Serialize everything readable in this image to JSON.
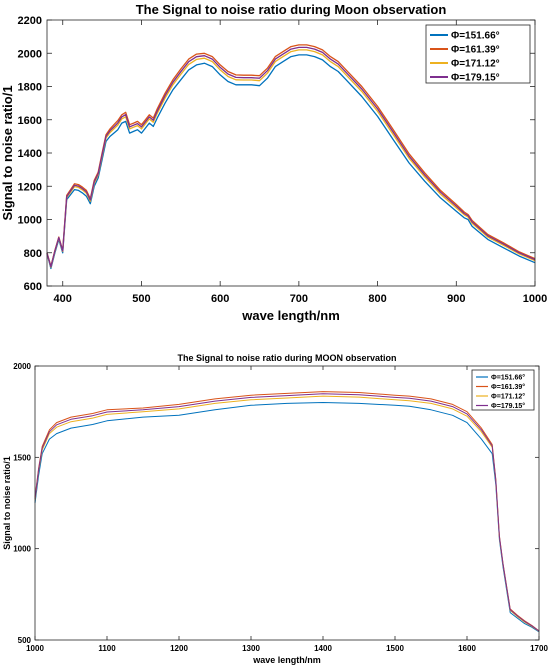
{
  "chart_data": [
    {
      "type": "line",
      "title": "The Signal to noise ratio during Moon observation",
      "xlabel": "wave length/nm",
      "ylabel": "Signal to noise ratio/1",
      "xlim": [
        380,
        1000
      ],
      "ylim": [
        600,
        2200
      ],
      "xticks": [
        400,
        500,
        600,
        700,
        800,
        900,
        1000
      ],
      "yticks": [
        600,
        800,
        1000,
        1200,
        1400,
        1600,
        1800,
        2000,
        2200
      ],
      "grid": false,
      "legend_position": "top-right",
      "x": [
        380,
        385,
        390,
        395,
        400,
        405,
        410,
        415,
        420,
        425,
        430,
        435,
        440,
        445,
        450,
        455,
        460,
        465,
        470,
        475,
        480,
        485,
        490,
        495,
        500,
        505,
        510,
        515,
        520,
        530,
        540,
        550,
        560,
        570,
        580,
        590,
        600,
        610,
        620,
        630,
        640,
        650,
        660,
        670,
        680,
        690,
        700,
        710,
        720,
        730,
        740,
        750,
        760,
        780,
        800,
        820,
        840,
        860,
        880,
        900,
        910,
        915,
        920,
        940,
        960,
        980,
        1000
      ],
      "series": [
        {
          "name": "Φ=151.66°",
          "color": "#0072bd",
          "values": [
            795,
            705,
            800,
            880,
            800,
            1120,
            1150,
            1180,
            1175,
            1160,
            1140,
            1095,
            1200,
            1250,
            1360,
            1470,
            1500,
            1520,
            1540,
            1580,
            1590,
            1520,
            1530,
            1540,
            1520,
            1550,
            1580,
            1560,
            1610,
            1700,
            1780,
            1840,
            1900,
            1930,
            1940,
            1920,
            1870,
            1830,
            1810,
            1810,
            1810,
            1805,
            1850,
            1920,
            1950,
            1980,
            1990,
            1990,
            1980,
            1960,
            1920,
            1890,
            1840,
            1740,
            1620,
            1480,
            1340,
            1230,
            1130,
            1050,
            1010,
            1000,
            960,
            880,
            830,
            780,
            740
          ]
        },
        {
          "name": "Φ=161.39°",
          "color": "#d95319",
          "values": [
            800,
            720,
            815,
            895,
            815,
            1145,
            1180,
            1215,
            1210,
            1195,
            1175,
            1125,
            1235,
            1285,
            1400,
            1510,
            1545,
            1570,
            1595,
            1630,
            1645,
            1570,
            1580,
            1590,
            1570,
            1600,
            1630,
            1610,
            1665,
            1760,
            1840,
            1905,
            1965,
            1995,
            2000,
            1980,
            1930,
            1890,
            1870,
            1868,
            1868,
            1865,
            1910,
            1980,
            2010,
            2040,
            2050,
            2050,
            2040,
            2020,
            1980,
            1950,
            1900,
            1800,
            1680,
            1540,
            1395,
            1280,
            1175,
            1090,
            1045,
            1030,
            995,
            910,
            860,
            805,
            765
          ]
        },
        {
          "name": "Φ=171.12°",
          "color": "#edb120",
          "values": [
            797,
            713,
            808,
            888,
            808,
            1132,
            1165,
            1198,
            1193,
            1178,
            1158,
            1110,
            1218,
            1268,
            1380,
            1490,
            1523,
            1545,
            1568,
            1605,
            1618,
            1545,
            1555,
            1565,
            1545,
            1575,
            1605,
            1585,
            1638,
            1730,
            1810,
            1873,
            1933,
            1963,
            1970,
            1950,
            1900,
            1860,
            1840,
            1839,
            1839,
            1835,
            1880,
            1950,
            1980,
            2010,
            2020,
            2020,
            2010,
            1990,
            1950,
            1920,
            1870,
            1770,
            1650,
            1510,
            1368,
            1255,
            1153,
            1070,
            1028,
            1015,
            978,
            895,
            845,
            793,
            753
          ]
        },
        {
          "name": "Φ=179.15°",
          "color": "#7e2f8e",
          "values": [
            798,
            716,
            811,
            891,
            811,
            1138,
            1172,
            1206,
            1201,
            1186,
            1166,
            1117,
            1226,
            1276,
            1390,
            1500,
            1534,
            1557,
            1581,
            1617,
            1631,
            1557,
            1567,
            1577,
            1557,
            1587,
            1617,
            1597,
            1651,
            1745,
            1825,
            1889,
            1949,
            1979,
            1985,
            1965,
            1915,
            1875,
            1855,
            1853,
            1853,
            1850,
            1895,
            1965,
            1995,
            2025,
            2035,
            2035,
            2025,
            2005,
            1965,
            1935,
            1885,
            1785,
            1665,
            1525,
            1381,
            1267,
            1164,
            1080,
            1036,
            1022,
            986,
            902,
            852,
            799,
            759
          ]
        }
      ]
    },
    {
      "type": "line",
      "title": "The Signal to noise ratio during MOON observation",
      "xlabel": "wave length/nm",
      "ylabel": "Signal to noise ratio/1",
      "xlim": [
        1000,
        1700
      ],
      "ylim": [
        500,
        2000
      ],
      "xticks": [
        1000,
        1100,
        1200,
        1300,
        1400,
        1500,
        1600,
        1700
      ],
      "yticks": [
        500,
        1000,
        1500,
        2000
      ],
      "grid": false,
      "legend_position": "top-right",
      "x": [
        1000,
        1005,
        1010,
        1020,
        1030,
        1050,
        1080,
        1100,
        1150,
        1200,
        1250,
        1300,
        1350,
        1400,
        1450,
        1500,
        1520,
        1550,
        1580,
        1600,
        1620,
        1635,
        1640,
        1645,
        1650,
        1660,
        1670,
        1680,
        1690,
        1700
      ],
      "series": [
        {
          "name": "Φ=151.66°",
          "color": "#0072bd",
          "values": [
            1250,
            1400,
            1520,
            1600,
            1630,
            1660,
            1680,
            1700,
            1720,
            1730,
            1760,
            1785,
            1795,
            1800,
            1795,
            1785,
            1780,
            1760,
            1730,
            1690,
            1600,
            1520,
            1350,
            1050,
            900,
            650,
            620,
            590,
            570,
            545
          ]
        },
        {
          "name": "Φ=161.39°",
          "color": "#d95319",
          "values": [
            1280,
            1440,
            1560,
            1650,
            1690,
            1720,
            1740,
            1760,
            1770,
            1790,
            1820,
            1840,
            1850,
            1860,
            1855,
            1840,
            1835,
            1820,
            1790,
            1750,
            1660,
            1570,
            1380,
            1070,
            920,
            670,
            635,
            605,
            580,
            550
          ]
        },
        {
          "name": "Φ=171.12°",
          "color": "#edb120",
          "values": [
            1265,
            1425,
            1540,
            1630,
            1665,
            1695,
            1715,
            1735,
            1750,
            1765,
            1795,
            1815,
            1825,
            1835,
            1830,
            1815,
            1810,
            1795,
            1765,
            1725,
            1640,
            1555,
            1370,
            1062,
            912,
            662,
            628,
            598,
            575,
            548
          ]
        },
        {
          "name": "Φ=179.15°",
          "color": "#7e2f8e",
          "values": [
            1272,
            1432,
            1550,
            1640,
            1678,
            1708,
            1728,
            1748,
            1760,
            1778,
            1808,
            1828,
            1838,
            1848,
            1843,
            1828,
            1823,
            1808,
            1778,
            1738,
            1650,
            1562,
            1375,
            1066,
            916,
            666,
            632,
            602,
            578,
            549
          ]
        }
      ]
    }
  ]
}
